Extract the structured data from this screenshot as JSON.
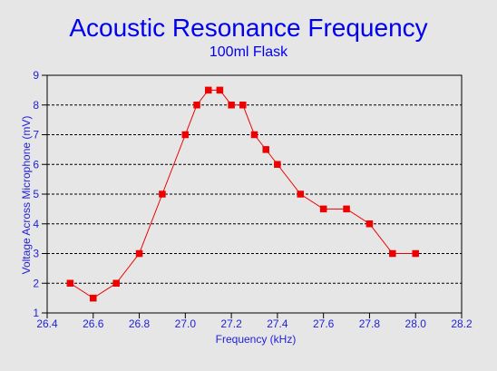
{
  "chart_data": {
    "type": "line",
    "title": "Acoustic Resonance Frequency",
    "subtitle": "100ml Flask",
    "xlabel": "Frequency (kHz)",
    "ylabel": "Voltage Across Microphone (mV)",
    "xlim": [
      26.4,
      28.2
    ],
    "ylim": [
      1,
      9
    ],
    "xticks": [
      "26.4",
      "26.6",
      "26.8",
      "27.0",
      "27.2",
      "27.4",
      "27.6",
      "27.8",
      "28.0",
      "28.2"
    ],
    "yticks": [
      "1",
      "2",
      "3",
      "4",
      "5",
      "6",
      "7",
      "8",
      "9"
    ],
    "grid": "horizontal",
    "colors": {
      "title": "#0000ee",
      "axis_text": "#1f1fd6",
      "series": "#ee0000",
      "background": "#e6e6e6"
    },
    "series": [
      {
        "x": [
          26.5,
          26.6,
          26.7,
          26.8,
          26.9,
          27.0,
          27.05,
          27.1,
          27.15,
          27.2,
          27.25,
          27.3,
          27.35,
          27.4,
          27.5,
          27.6,
          27.7,
          27.8,
          27.9,
          28.0
        ],
        "y": [
          2.0,
          1.5,
          2.0,
          3.0,
          5.0,
          7.0,
          8.0,
          8.5,
          8.5,
          8.0,
          8.0,
          7.0,
          6.5,
          6.0,
          5.0,
          4.5,
          4.5,
          4.0,
          3.0,
          3.0
        ]
      }
    ]
  }
}
